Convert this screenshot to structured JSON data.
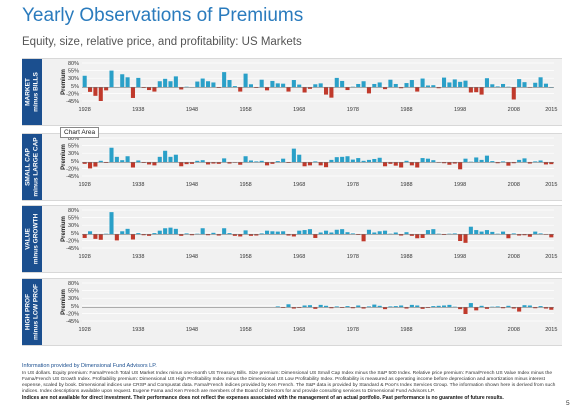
{
  "header": {
    "title": "Yearly Observations of Premiums",
    "subtitle": "Equity, size, relative price, and profitability: US Markets"
  },
  "tooltip": "Chart Area",
  "chart_data": [
    {
      "type": "bar",
      "label_lines": [
        "MARKET",
        "minus BILLS"
      ],
      "ylabel": "Premium",
      "ylim": [
        -45,
        80
      ],
      "yticks": [
        80,
        55,
        30,
        5,
        -20,
        -45
      ],
      "x_ticks": [
        "1928",
        "1938",
        "1948",
        "1958",
        "1968",
        "1978",
        "1988",
        "1998",
        "2008",
        "2015"
      ],
      "colors": {
        "positive": "#2aa0c8",
        "negative": "#c0392b"
      },
      "x": [
        1928,
        1929,
        1930,
        1931,
        1932,
        1933,
        1934,
        1935,
        1936,
        1937,
        1938,
        1939,
        1940,
        1941,
        1942,
        1943,
        1944,
        1945,
        1946,
        1947,
        1948,
        1949,
        1950,
        1951,
        1952,
        1953,
        1954,
        1955,
        1956,
        1957,
        1958,
        1959,
        1960,
        1961,
        1962,
        1963,
        1964,
        1965,
        1966,
        1967,
        1968,
        1969,
        1970,
        1971,
        1972,
        1973,
        1974,
        1975,
        1976,
        1977,
        1978,
        1979,
        1980,
        1981,
        1982,
        1983,
        1984,
        1985,
        1986,
        1987,
        1988,
        1989,
        1990,
        1991,
        1992,
        1993,
        1994,
        1995,
        1996,
        1997,
        1998,
        1999,
        2000,
        2001,
        2002,
        2003,
        2004,
        2005,
        2006,
        2007,
        2008,
        2009,
        2010,
        2011,
        2012,
        2013,
        2014,
        2015
      ],
      "values": [
        38,
        -15,
        -28,
        -45,
        -10,
        55,
        1,
        43,
        33,
        -35,
        31,
        -2,
        -9,
        -14,
        20,
        28,
        20,
        36,
        -7,
        2,
        1,
        19,
        29,
        20,
        16,
        -2,
        50,
        24,
        4,
        -14,
        45,
        10,
        -2,
        25,
        -10,
        21,
        13,
        12,
        -14,
        24,
        9,
        -17,
        -5,
        10,
        13,
        -24,
        -34,
        31,
        21,
        -9,
        2,
        11,
        20,
        -20,
        11,
        16,
        -6,
        25,
        11,
        -3,
        14,
        24,
        -14,
        29,
        6,
        7,
        -3,
        32,
        16,
        26,
        18,
        22,
        -17,
        -16,
        -24,
        30,
        10,
        3,
        11,
        2,
        -40,
        27,
        17,
        -1,
        15,
        33,
        12,
        0
      ]
    },
    {
      "type": "bar",
      "label_lines": [
        "SMALL CAP",
        "minus LARGE CAP"
      ],
      "ylabel": "Premium",
      "ylim": [
        -45,
        80
      ],
      "yticks": [
        80,
        55,
        30,
        5,
        -20,
        -45
      ],
      "x_ticks": [
        "1928",
        "1938",
        "1948",
        "1958",
        "1968",
        "1978",
        "1988",
        "1998",
        "2008",
        "2015"
      ],
      "colors": {
        "positive": "#2aa0c8",
        "negative": "#c0392b"
      },
      "x": [
        1928,
        1929,
        1930,
        1931,
        1932,
        1933,
        1934,
        1935,
        1936,
        1937,
        1938,
        1939,
        1940,
        1941,
        1942,
        1943,
        1944,
        1945,
        1946,
        1947,
        1948,
        1949,
        1950,
        1951,
        1952,
        1953,
        1954,
        1955,
        1956,
        1957,
        1958,
        1959,
        1960,
        1961,
        1962,
        1963,
        1964,
        1965,
        1966,
        1967,
        1968,
        1969,
        1970,
        1971,
        1972,
        1973,
        1974,
        1975,
        1976,
        1977,
        1978,
        1979,
        1980,
        1981,
        1982,
        1983,
        1984,
        1985,
        1986,
        1987,
        1988,
        1989,
        1990,
        1991,
        1992,
        1993,
        1994,
        1995,
        1996,
        1997,
        1998,
        1999,
        2000,
        2001,
        2002,
        2003,
        2004,
        2005,
        2006,
        2007,
        2008,
        2009,
        2010,
        2011,
        2012,
        2013,
        2014,
        2015
      ],
      "values": [
        -5,
        -20,
        -14,
        5,
        -2,
        48,
        18,
        7,
        20,
        -17,
        6,
        -2,
        -7,
        -10,
        18,
        38,
        18,
        25,
        -13,
        -6,
        -5,
        5,
        7,
        -7,
        -4,
        -5,
        13,
        -4,
        -1,
        -8,
        20,
        6,
        3,
        5,
        -10,
        -5,
        4,
        12,
        -2,
        45,
        25,
        -13,
        -10,
        3,
        -10,
        -16,
        8,
        17,
        18,
        20,
        9,
        14,
        5,
        8,
        11,
        15,
        -13,
        -5,
        -11,
        -17,
        5,
        -10,
        -17,
        14,
        12,
        7,
        -1,
        -3,
        -8,
        -4,
        -23,
        12,
        2,
        16,
        8,
        22,
        4,
        -3,
        3,
        -11,
        -3,
        8,
        13,
        -4,
        3,
        6,
        -7,
        -6
      ]
    },
    {
      "type": "bar",
      "label_lines": [
        "VALUE",
        "minus GROWTH"
      ],
      "ylabel": "Premium",
      "ylim": [
        -45,
        80
      ],
      "yticks": [
        80,
        55,
        30,
        5,
        -20,
        -45
      ],
      "x_ticks": [
        "1928",
        "1938",
        "1948",
        "1958",
        "1968",
        "1978",
        "1988",
        "1998",
        "2008",
        "2015"
      ],
      "colors": {
        "positive": "#2aa0c8",
        "negative": "#c0392b"
      },
      "x": [
        1928,
        1929,
        1930,
        1931,
        1932,
        1933,
        1934,
        1935,
        1936,
        1937,
        1938,
        1939,
        1940,
        1941,
        1942,
        1943,
        1944,
        1945,
        1946,
        1947,
        1948,
        1949,
        1950,
        1951,
        1952,
        1953,
        1954,
        1955,
        1956,
        1957,
        1958,
        1959,
        1960,
        1961,
        1962,
        1963,
        1964,
        1965,
        1966,
        1967,
        1968,
        1969,
        1970,
        1971,
        1972,
        1973,
        1974,
        1975,
        1976,
        1977,
        1978,
        1979,
        1980,
        1981,
        1982,
        1983,
        1984,
        1985,
        1986,
        1987,
        1988,
        1989,
        1990,
        1991,
        1992,
        1993,
        1994,
        1995,
        1996,
        1997,
        1998,
        1999,
        2000,
        2001,
        2002,
        2003,
        2004,
        2005,
        2006,
        2007,
        2008,
        2009,
        2010,
        2011,
        2012,
        2013,
        2014,
        2015
      ],
      "values": [
        -12,
        10,
        -15,
        -18,
        2,
        73,
        -20,
        10,
        18,
        -17,
        4,
        -3,
        -5,
        4,
        12,
        20,
        22,
        18,
        -5,
        3,
        -3,
        2,
        20,
        -3,
        5,
        -4,
        20,
        4,
        -5,
        -7,
        13,
        -5,
        -4,
        3,
        12,
        10,
        9,
        10,
        -4,
        -7,
        12,
        14,
        17,
        -12,
        6,
        12,
        6,
        15,
        17,
        7,
        3,
        -2,
        -23,
        15,
        6,
        10,
        12,
        2,
        6,
        -4,
        7,
        -5,
        -13,
        -12,
        14,
        17,
        2,
        -2,
        2,
        3,
        -22,
        -28,
        25,
        14,
        9,
        14,
        8,
        2,
        9,
        -13,
        3,
        -4,
        -3,
        -8,
        9,
        3,
        -1,
        -10
      ]
    },
    {
      "type": "bar",
      "label_lines": [
        "HIGH PROF",
        "minus LOW PROF"
      ],
      "ylabel": "Premium",
      "ylim": [
        -45,
        80
      ],
      "yticks": [
        80,
        55,
        30,
        5,
        -20,
        -45
      ],
      "x_ticks": [
        "1928",
        "1938",
        "1948",
        "1958",
        "1968",
        "1978",
        "1988",
        "1998",
        "2008",
        "2015"
      ],
      "colors": {
        "positive": "#2aa0c8",
        "negative": "#c0392b"
      },
      "x": [
        1964,
        1965,
        1966,
        1967,
        1968,
        1969,
        1970,
        1971,
        1972,
        1973,
        1974,
        1975,
        1976,
        1977,
        1978,
        1979,
        1980,
        1981,
        1982,
        1983,
        1984,
        1985,
        1986,
        1987,
        1988,
        1989,
        1990,
        1991,
        1992,
        1993,
        1994,
        1995,
        1996,
        1997,
        1998,
        1999,
        2000,
        2001,
        2002,
        2003,
        2004,
        2005,
        2006,
        2007,
        2008,
        2009,
        2010,
        2011,
        2012,
        2013,
        2014,
        2015
      ],
      "values": [
        3,
        -2,
        10,
        -4,
        -2,
        6,
        7,
        -5,
        8,
        5,
        -3,
        3,
        -2,
        4,
        -3,
        6,
        -4,
        3,
        9,
        5,
        -6,
        3,
        4,
        6,
        -4,
        8,
        6,
        -5,
        -2,
        4,
        5,
        6,
        8,
        2,
        -6,
        -22,
        14,
        -10,
        5,
        -5,
        2,
        3,
        -3,
        5,
        -4,
        -14,
        7,
        6,
        -3,
        4,
        -4,
        -8
      ]
    }
  ],
  "footer": {
    "info": "Information provided by Dimensional Fund Advisors LP.",
    "body": "In US dollars. Equity premium: Fama/French Total US Market Index minus one-month US Treasury Bills. Size premium: Dimensional US Small Cap Index minus the S&P 500 Index. Relative price premium: Fama/French US Value Index minus the Fama/French US Growth Index. Profitability premium: Dimensional US High Profitability Index minus the Dimensional US Low Profitability Index. Profitability is measured as operating income before depreciation and amortization minus interest expense, scaled by book. Dimensional indices use CRSP and Compustat data. Fama/French indices provided by Ken French. The S&P data is provided by Standard & Poor's Index Services Group. The information shown here is derived from such indices. Index descriptions available upon request. Eugene Fama and Ken French are members of the Board of Directors for and provide consulting services to Dimensional Fund Advisors LP.",
    "disclaimer": "Indices are not available for direct investment. Their performance does not reflect the expenses associated with the management of an actual portfolio. Past performance is no guarantee of future results."
  },
  "page_number": "5"
}
